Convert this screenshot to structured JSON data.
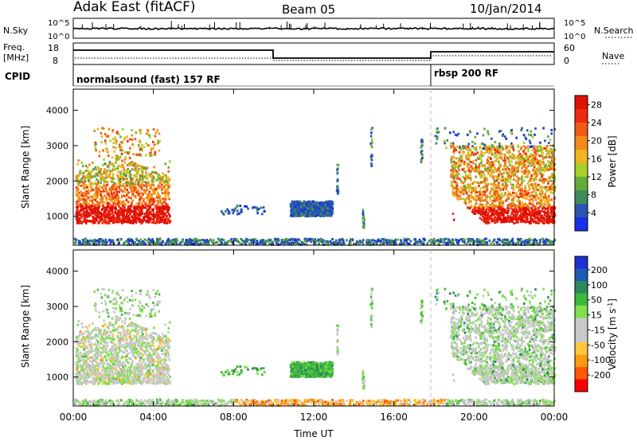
{
  "header": {
    "station": "Adak East (fitACF)",
    "beam": "Beam 05",
    "date": "10/Jan/2014"
  },
  "sky_panel": {
    "left_label": "N.Sky",
    "right_label": "N.Search",
    "ticks_left": [
      "10^5",
      "10^0"
    ],
    "ticks_right": [
      "10^5",
      "10^0"
    ]
  },
  "freq_panel": {
    "left_label_1": "Freq.",
    "left_label_2": "[MHz]",
    "right_label": "Nave",
    "ticks_left": [
      "18",
      "8"
    ],
    "ticks_right": [
      "60",
      "0"
    ]
  },
  "cpid": {
    "label": "CPID",
    "program_1": "normalsound (fast) 157 RF",
    "program_2": "rbsp 200 RF"
  },
  "colors": {
    "power_scale": [
      "#1a2ee6",
      "#2a56b0",
      "#3f8a5c",
      "#62ad3a",
      "#a9cf2a",
      "#f0b41e",
      "#f08a1a",
      "#f25a12",
      "#ee2b0d",
      "#e01005"
    ],
    "velocity_scale": [
      "#ff0000",
      "#ff5a00",
      "#ff9a10",
      "#ffc83c",
      "#c8c8c8",
      "#c8c8c8",
      "#7ee04a",
      "#3fb83a",
      "#2a8a5c",
      "#1e5ab4",
      "#1a32d2"
    ]
  },
  "chart_data": [
    {
      "type": "heatmap",
      "title": "",
      "xlabel": "",
      "ylabel": "Slant Range [km]",
      "xlim": [
        "00:00",
        "24:00"
      ],
      "ylim": [
        180,
        4600
      ],
      "yticks": [
        1000,
        2000,
        3000,
        4000
      ],
      "colorbar_label": "Power [dB]",
      "colorbar_ticks": [
        4,
        8,
        12,
        16,
        20,
        24,
        28
      ],
      "colorbar_range": [
        0,
        30
      ],
      "regions": [
        {
          "name": "evening-echoes",
          "t_start": 0.1,
          "t_end": 4.8,
          "r_start": 800,
          "r_end": 2700,
          "level": "mixed-high"
        },
        {
          "name": "near-range-clutter",
          "t_start": 0.0,
          "t_end": 24.0,
          "r_start": 200,
          "r_end": 350,
          "level": "low"
        },
        {
          "name": "midday-patch",
          "t_start": 10.8,
          "t_end": 12.9,
          "r_start": 1000,
          "r_end": 1400,
          "level": "low"
        },
        {
          "name": "late-echoes",
          "t_start": 18.8,
          "t_end": 24.0,
          "r_start": 800,
          "r_end": 3000,
          "level": "mixed-high"
        }
      ]
    },
    {
      "type": "heatmap",
      "title": "",
      "xlabel": "Time UT",
      "ylabel": "Slant Range [km]",
      "xlim": [
        "00:00",
        "24:00"
      ],
      "ylim": [
        180,
        4600
      ],
      "xticks": [
        "00:00",
        "04:00",
        "08:00",
        "12:00",
        "16:00",
        "20:00",
        "00:00"
      ],
      "yticks": [
        1000,
        2000,
        3000,
        4000
      ],
      "colorbar_label": "Velocity [m s^-1]",
      "colorbar_ticks": [
        200,
        100,
        50,
        15,
        -15,
        -50,
        -100,
        -200
      ],
      "regions": [
        {
          "name": "evening-echoes",
          "t_start": 0.1,
          "t_end": 4.8,
          "r_start": 800,
          "r_end": 2700,
          "level": "near-zero"
        },
        {
          "name": "midday-patch",
          "t_start": 10.8,
          "t_end": 12.9,
          "r_start": 1000,
          "r_end": 1400,
          "level": "positive"
        },
        {
          "name": "near-range-clutter",
          "t_start": 8.0,
          "t_end": 18.5,
          "r_start": 200,
          "r_end": 350,
          "level": "negative"
        },
        {
          "name": "late-echoes",
          "t_start": 18.8,
          "t_end": 24.0,
          "r_start": 800,
          "r_end": 3000,
          "level": "near-zero"
        }
      ]
    }
  ]
}
